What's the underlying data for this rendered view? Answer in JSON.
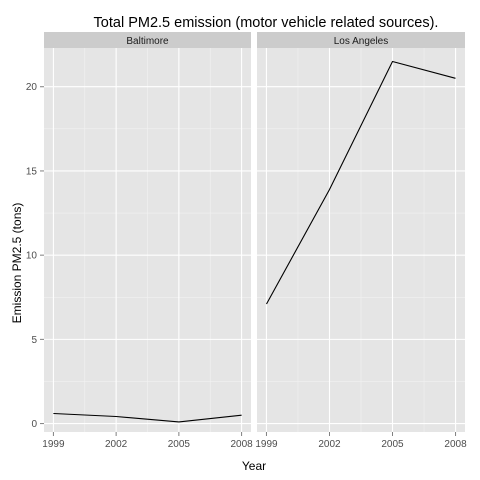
{
  "chart_data": {
    "type": "line",
    "title": "Total PM2.5 emission (motor vehicle related sources).",
    "xlabel": "Year",
    "ylabel": "Emission PM2.5 (tons)",
    "x": [
      1999,
      2002,
      2005,
      2008
    ],
    "x_ticks": [
      1999,
      2002,
      2005,
      2008
    ],
    "y_ticks": [
      0,
      5,
      10,
      15,
      20
    ],
    "xlim": [
      1998.55,
      2008.45
    ],
    "ylim": [
      -0.5,
      22.3
    ],
    "grid": true,
    "legend": "none",
    "colors": {
      "line": "#000000",
      "panel": "#e5e5e5",
      "strip": "#cccccc",
      "grid": "#ffffff"
    },
    "facets": [
      {
        "label": "Baltimore",
        "values": [
          0.6,
          0.42,
          0.1,
          0.5
        ]
      },
      {
        "label": "Los Angeles",
        "values": [
          7.1,
          13.9,
          21.5,
          20.5
        ]
      }
    ]
  }
}
